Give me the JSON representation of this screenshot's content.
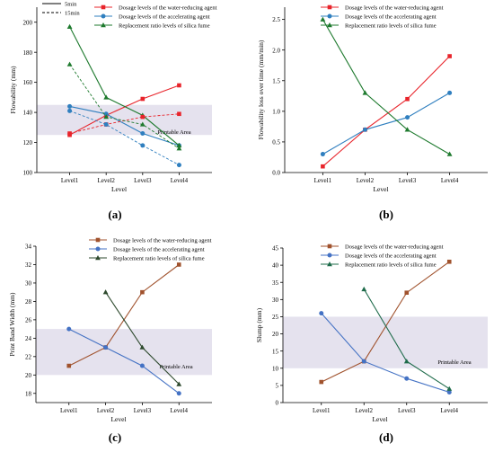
{
  "figure": {
    "panel_labels": [
      "(a)",
      "(b)",
      "(c)",
      "(d)"
    ]
  },
  "chart_data": [
    {
      "type": "line",
      "panel": "(a)",
      "xlabel": "Level",
      "ylabel": "Flowability (mm)",
      "categories": [
        "Level1",
        "Level2",
        "Level3",
        "Level4"
      ],
      "ylim": [
        100,
        210
      ],
      "yticks": [
        100,
        120,
        140,
        160,
        180,
        200
      ],
      "band": {
        "from": 125,
        "to": 145,
        "label": "Printable Area"
      },
      "line_style_legend": [
        {
          "name": "5min",
          "dash": "solid"
        },
        {
          "name": "15min",
          "dash": "dashed"
        }
      ],
      "series": [
        {
          "name": "Dosage levels of the water-reducing agent",
          "color": "#e8242b",
          "marker": "square",
          "dash": "solid",
          "values": [
            125,
            138,
            149,
            158
          ]
        },
        {
          "name": "Dosage levels of the accelerating agent",
          "color": "#2f7fbf",
          "marker": "circle",
          "dash": "solid",
          "values": [
            144,
            139,
            126,
            118
          ]
        },
        {
          "name": "Replacement ratio levels of silica fume",
          "color": "#1e7a2e",
          "marker": "triangle",
          "dash": "solid",
          "values": [
            197,
            150,
            138,
            118
          ]
        },
        {
          "name": "",
          "color": "#e8242b",
          "marker": "square",
          "dash": "dashed",
          "values": [
            126,
            132,
            137,
            139
          ]
        },
        {
          "name": "",
          "color": "#2f7fbf",
          "marker": "circle",
          "dash": "dashed",
          "values": [
            141,
            132,
            118,
            105
          ]
        },
        {
          "name": "",
          "color": "#1e7a2e",
          "marker": "triangle",
          "dash": "dashed",
          "values": [
            172,
            137,
            132,
            116
          ]
        }
      ]
    },
    {
      "type": "line",
      "panel": "(b)",
      "xlabel": "Level",
      "ylabel": "Flowability loss over time (mm/min)",
      "categories": [
        "Level1",
        "Level2",
        "Level3",
        "Level4"
      ],
      "ylim": [
        0.0,
        2.7
      ],
      "yticks": [
        0.0,
        0.5,
        1.0,
        1.5,
        2.0,
        2.5
      ],
      "yticklabels": [
        "0.0",
        "0.5",
        "1.0",
        "1.5",
        "2.0",
        "2.5"
      ],
      "series": [
        {
          "name": "Dosage levels of the water-reducing agent",
          "color": "#e8242b",
          "marker": "square",
          "values": [
            0.1,
            0.7,
            1.2,
            1.9
          ]
        },
        {
          "name": "Dosage levels of the accelerating agent",
          "color": "#2f7fbf",
          "marker": "circle",
          "values": [
            0.3,
            0.7,
            0.9,
            1.3
          ]
        },
        {
          "name": "Replacement ratio levels of silica fume",
          "color": "#1e7a2e",
          "marker": "triangle",
          "values": [
            2.5,
            1.3,
            0.7,
            0.3
          ]
        }
      ]
    },
    {
      "type": "line",
      "panel": "(c)",
      "xlabel": "Level",
      "ylabel": "Print Band Width (mm)",
      "categories": [
        "Level1",
        "Level2",
        "Level3",
        "Level4"
      ],
      "ylim": [
        17,
        34
      ],
      "yticks": [
        18,
        20,
        22,
        24,
        26,
        28,
        30,
        32,
        34
      ],
      "band": {
        "from": 20,
        "to": 25,
        "label": "Printable Area"
      },
      "series": [
        {
          "name": "Dosage levels of the water-reducing agent",
          "color": "#a0522d",
          "marker": "square",
          "values": [
            21,
            23,
            29,
            32
          ]
        },
        {
          "name": "Dosage levels of the accelerating agent",
          "color": "#4472c4",
          "marker": "circle",
          "values": [
            25,
            23,
            21,
            18
          ]
        },
        {
          "name": "Replacement ratio levels of silica fume",
          "color": "#2e4a2e",
          "marker": "triangle",
          "values": [
            null,
            29,
            23,
            19
          ]
        }
      ]
    },
    {
      "type": "line",
      "panel": "(d)",
      "xlabel": "Level",
      "ylabel": "Slump (mm)",
      "categories": [
        "Level1",
        "Level2",
        "Level3",
        "Level4"
      ],
      "ylim": [
        0,
        45
      ],
      "yticks": [
        0,
        5,
        10,
        15,
        20,
        25,
        30,
        35,
        40,
        45
      ],
      "band": {
        "from": 10,
        "to": 25,
        "label": "Printable Area"
      },
      "series": [
        {
          "name": "Dosage levels of the water-reducing agent",
          "color": "#a0522d",
          "marker": "square",
          "values": [
            6,
            12,
            32,
            41
          ]
        },
        {
          "name": "Dosage levels of the accelerating agent",
          "color": "#4472c4",
          "marker": "circle",
          "values": [
            26,
            12,
            7,
            3
          ]
        },
        {
          "name": "Replacement ratio levels of silica fume",
          "color": "#1e6b4a",
          "marker": "triangle",
          "values": [
            null,
            33,
            12,
            4
          ]
        }
      ]
    }
  ]
}
